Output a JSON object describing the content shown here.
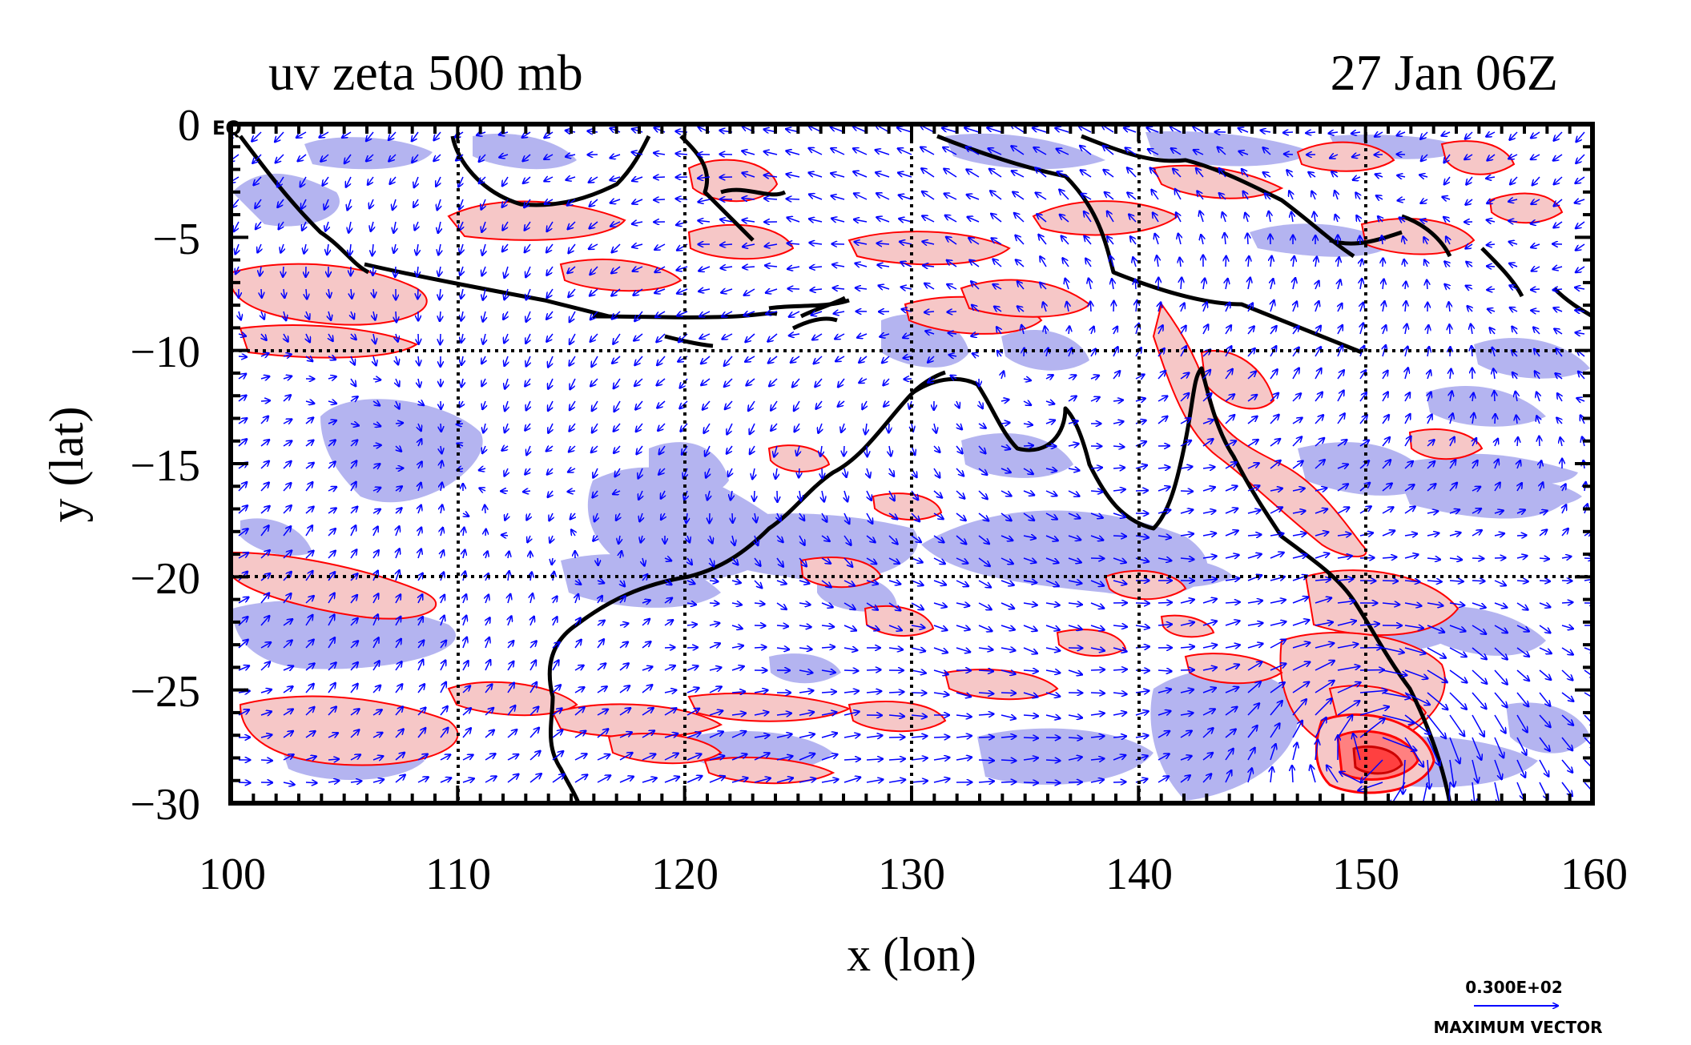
{
  "map": {
    "title_left": "uv zeta 500 mb",
    "title_right": "27 Jan 06Z",
    "xlabel": "x (lon)",
    "ylabel": "y (lat)",
    "corner_label": "EQ",
    "x_ticks": [
      "100",
      "110",
      "120",
      "130",
      "140",
      "150",
      "160"
    ],
    "y_ticks": [
      "0",
      "−5",
      "−10",
      "−15",
      "−20",
      "−25",
      "−30"
    ],
    "lon_range": [
      100,
      160
    ],
    "lat_range": [
      -30,
      0
    ],
    "vector_legend": {
      "value": "0.300E+02",
      "caption": "MAXIMUM VECTOR"
    },
    "colors": {
      "positive_fill": "#f6c7c7",
      "positive_contour": "#ff0000",
      "negative_fill": "#b4b4f0",
      "vector": "#0000ff",
      "coastline": "#000000"
    },
    "coastline_icon": "coastline-outline"
  }
}
